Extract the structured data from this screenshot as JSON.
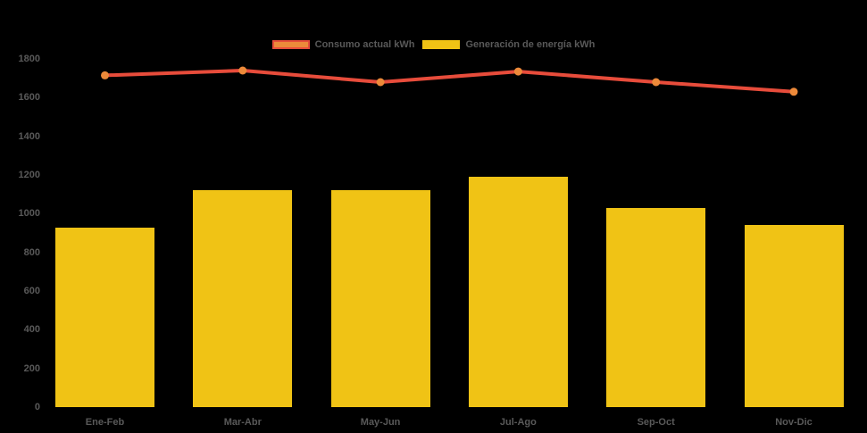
{
  "chart_data": {
    "type": "combo",
    "title": "",
    "categories": [
      "Ene-Feb",
      "Mar-Abr",
      "May-Jun",
      "Jul-Ago",
      "Sep-Oct",
      "Nov-Dic"
    ],
    "series": [
      {
        "name": "Consumo actual kWh",
        "type": "line",
        "color": "#e74c3b",
        "marker_color": "#ed8a3a",
        "values": [
          1715,
          1740,
          1680,
          1735,
          1680,
          1630
        ]
      },
      {
        "name": "Generación de energía kWh",
        "type": "bar",
        "color": "#f0c315",
        "values": [
          930,
          1120,
          1120,
          1190,
          1030,
          940
        ]
      }
    ],
    "ylim": [
      0,
      1800
    ],
    "ytick_step": 200,
    "ytick_labels": [
      "0",
      "200",
      "400",
      "600",
      "800",
      "1000",
      "1200",
      "1400",
      "1600",
      "1800"
    ],
    "grid": false,
    "legend_position": "top",
    "xlabel": "",
    "ylabel": "",
    "background": "#000000",
    "text_color": "#595959"
  }
}
